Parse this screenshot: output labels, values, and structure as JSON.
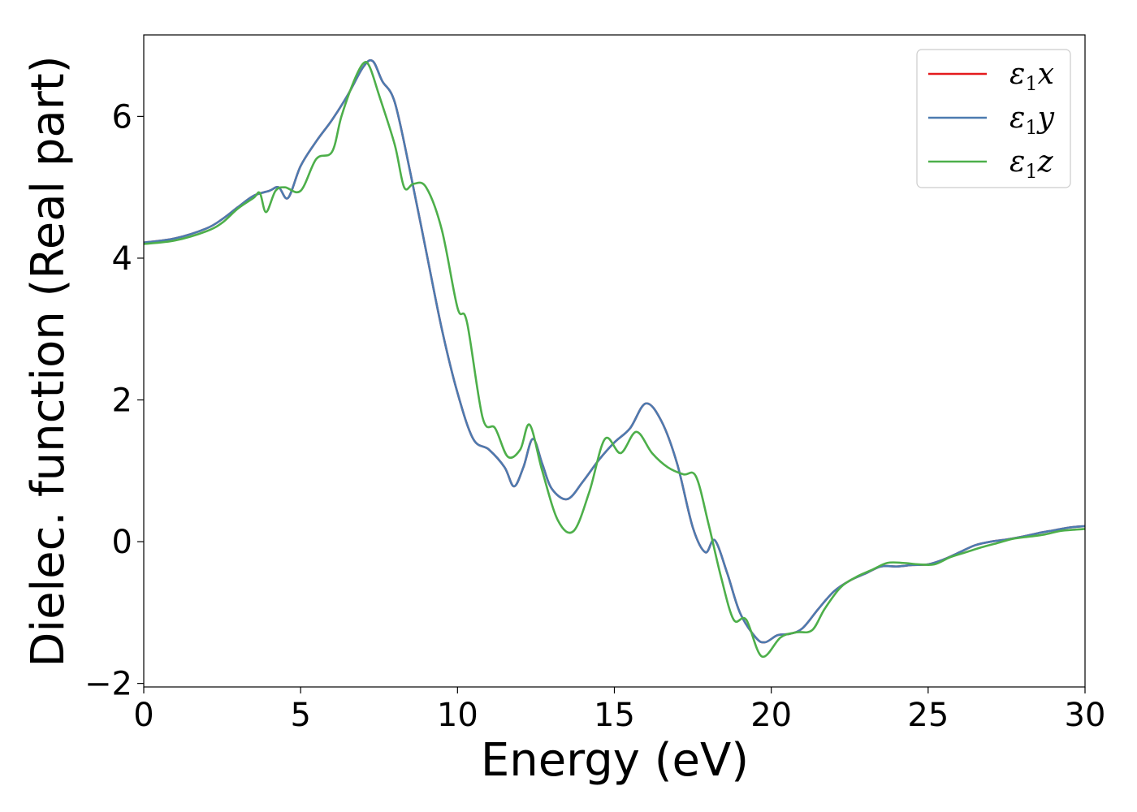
{
  "chart_data": {
    "type": "line",
    "title": "",
    "xlabel": "Energy (eV)",
    "ylabel": "Dielec. function (Real part)",
    "xlim": [
      0,
      30
    ],
    "ylim": [
      -2.05,
      7.15
    ],
    "x_ticks": [
      0,
      5,
      10,
      15,
      20,
      25,
      30
    ],
    "x_tick_labels": [
      "0",
      "5",
      "10",
      "15",
      "20",
      "25",
      "30"
    ],
    "y_ticks": [
      -2,
      0,
      2,
      4,
      6
    ],
    "y_tick_labels": [
      "−2",
      "0",
      "2",
      "4",
      "6"
    ],
    "grid": false,
    "legend_position": "top-right",
    "series": [
      {
        "name": "ε1x",
        "legend_symbol": "ε",
        "legend_sub": "1",
        "legend_var": "x",
        "color": "#e41a1c",
        "x": [
          0,
          1,
          2,
          2.5,
          3,
          3.5,
          4,
          4.3,
          4.6,
          5,
          5.5,
          6,
          6.5,
          7,
          7.3,
          7.6,
          8,
          8.5,
          9,
          9.5,
          10,
          10.5,
          11,
          11.5,
          11.8,
          12.1,
          12.4,
          12.7,
          13,
          13.5,
          14,
          14.5,
          15,
          15.5,
          16,
          16.5,
          17,
          17.5,
          17.9,
          18.2,
          18.6,
          19,
          19.5,
          19.8,
          20.2,
          20.6,
          21,
          21.5,
          22,
          22.5,
          23,
          23.5,
          24,
          24.5,
          25,
          25.5,
          26,
          26.5,
          27,
          27.5,
          28,
          28.5,
          29,
          29.5,
          30
        ],
        "y": [
          4.22,
          4.28,
          4.42,
          4.55,
          4.72,
          4.88,
          4.95,
          5.0,
          4.85,
          5.3,
          5.65,
          5.95,
          6.3,
          6.7,
          6.78,
          6.5,
          6.2,
          5.2,
          4.1,
          3.0,
          2.1,
          1.45,
          1.3,
          1.05,
          0.78,
          1.05,
          1.45,
          1.1,
          0.75,
          0.6,
          0.85,
          1.15,
          1.4,
          1.6,
          1.95,
          1.7,
          1.1,
          0.2,
          -0.15,
          0.02,
          -0.45,
          -1.0,
          -1.35,
          -1.42,
          -1.32,
          -1.3,
          -1.22,
          -0.95,
          -0.7,
          -0.55,
          -0.45,
          -0.35,
          -0.35,
          -0.33,
          -0.32,
          -0.25,
          -0.15,
          -0.05,
          0.0,
          0.03,
          0.07,
          0.12,
          0.16,
          0.2,
          0.22
        ]
      },
      {
        "name": "ε1y",
        "legend_symbol": "ε",
        "legend_sub": "1",
        "legend_var": "y",
        "color": "#4c7bb0",
        "x": [
          0,
          1,
          2,
          2.5,
          3,
          3.5,
          4,
          4.3,
          4.6,
          5,
          5.5,
          6,
          6.5,
          7,
          7.3,
          7.6,
          8,
          8.5,
          9,
          9.5,
          10,
          10.5,
          11,
          11.5,
          11.8,
          12.1,
          12.4,
          12.7,
          13,
          13.5,
          14,
          14.5,
          15,
          15.5,
          16,
          16.5,
          17,
          17.5,
          17.9,
          18.2,
          18.6,
          19,
          19.5,
          19.8,
          20.2,
          20.6,
          21,
          21.5,
          22,
          22.5,
          23,
          23.5,
          24,
          24.5,
          25,
          25.5,
          26,
          26.5,
          27,
          27.5,
          28,
          28.5,
          29,
          29.5,
          30
        ],
        "y": [
          4.22,
          4.28,
          4.42,
          4.55,
          4.72,
          4.88,
          4.95,
          5.0,
          4.85,
          5.3,
          5.65,
          5.95,
          6.3,
          6.7,
          6.78,
          6.5,
          6.2,
          5.2,
          4.1,
          3.0,
          2.1,
          1.45,
          1.3,
          1.05,
          0.78,
          1.05,
          1.45,
          1.1,
          0.75,
          0.6,
          0.85,
          1.15,
          1.4,
          1.6,
          1.95,
          1.7,
          1.1,
          0.2,
          -0.15,
          0.02,
          -0.45,
          -1.0,
          -1.35,
          -1.42,
          -1.32,
          -1.3,
          -1.22,
          -0.95,
          -0.7,
          -0.55,
          -0.45,
          -0.35,
          -0.35,
          -0.33,
          -0.32,
          -0.25,
          -0.15,
          -0.05,
          0.0,
          0.03,
          0.07,
          0.12,
          0.16,
          0.2,
          0.22
        ]
      },
      {
        "name": "ε1z",
        "legend_symbol": "ε",
        "legend_sub": "1",
        "legend_var": "z",
        "color": "#4daf4a",
        "x": [
          0,
          1,
          2,
          2.5,
          3,
          3.5,
          3.7,
          3.9,
          4.2,
          4.5,
          5,
          5.5,
          6,
          6.3,
          6.7,
          7.0,
          7.2,
          7.5,
          8,
          8.3,
          8.6,
          9.0,
          9.5,
          10,
          10.3,
          10.8,
          11.2,
          11.6,
          12.0,
          12.3,
          12.7,
          13.2,
          13.7,
          14.2,
          14.7,
          15.2,
          15.7,
          16.2,
          16.7,
          17.2,
          17.6,
          18.0,
          18.4,
          18.8,
          19.2,
          19.7,
          20.3,
          20.8,
          21.3,
          21.7,
          22.2,
          22.7,
          23.2,
          23.7,
          24.2,
          24.7,
          25.2,
          25.7,
          26.2,
          26.7,
          27.2,
          27.7,
          28.2,
          28.7,
          29.2,
          29.7,
          30
        ],
        "y": [
          4.2,
          4.25,
          4.38,
          4.5,
          4.7,
          4.85,
          4.92,
          4.65,
          4.95,
          5.0,
          4.95,
          5.4,
          5.5,
          6.0,
          6.5,
          6.75,
          6.7,
          6.3,
          5.6,
          5.0,
          5.05,
          5.0,
          4.4,
          3.3,
          3.1,
          1.75,
          1.6,
          1.2,
          1.3,
          1.65,
          1.0,
          0.3,
          0.15,
          0.7,
          1.45,
          1.25,
          1.55,
          1.25,
          1.05,
          0.95,
          0.92,
          0.25,
          -0.5,
          -1.1,
          -1.1,
          -1.62,
          -1.35,
          -1.28,
          -1.25,
          -0.95,
          -0.65,
          -0.5,
          -0.4,
          -0.3,
          -0.3,
          -0.32,
          -0.32,
          -0.22,
          -0.15,
          -0.08,
          -0.02,
          0.04,
          0.07,
          0.1,
          0.15,
          0.17,
          0.18
        ]
      }
    ]
  }
}
